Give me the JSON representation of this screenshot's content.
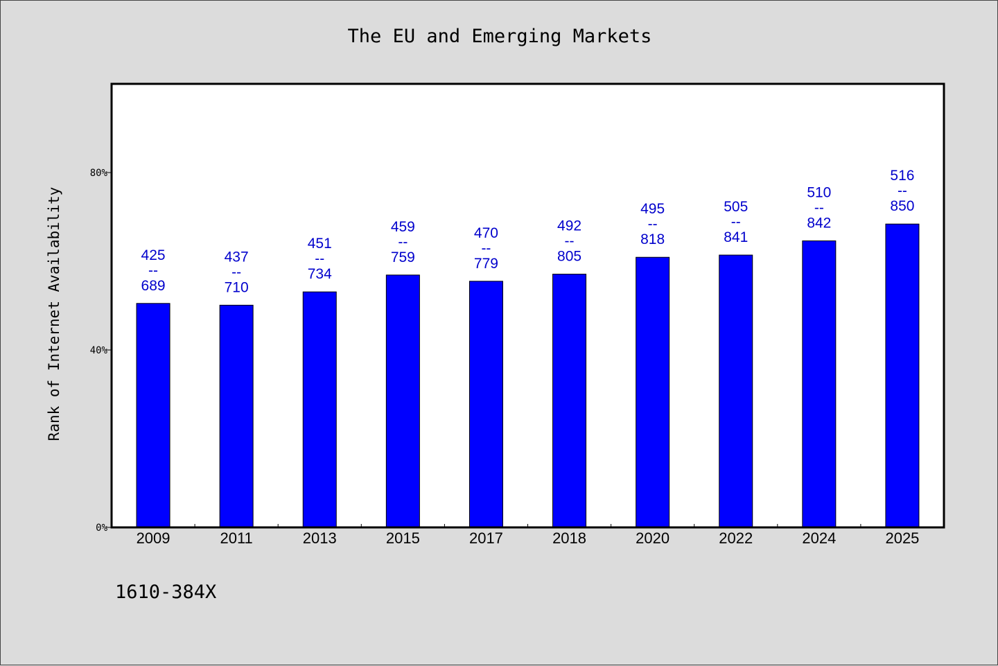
{
  "chart_data": {
    "type": "bar",
    "title": "The EU and Emerging Markets",
    "xlabel": "",
    "ylabel": "Rank of Internet Availability",
    "ylim": [
      0,
      100
    ],
    "yticks": [
      0,
      40,
      80
    ],
    "ytick_labels": [
      "0%",
      "40%",
      "80%"
    ],
    "grid": false,
    "categories": [
      "2009",
      "2011",
      "2013",
      "2015",
      "2017",
      "2018",
      "2020",
      "2022",
      "2024",
      "2025"
    ],
    "values": [
      50.5,
      50.1,
      53.1,
      56.9,
      55.5,
      57.1,
      60.9,
      61.4,
      64.6,
      68.4
    ],
    "data_labels": [
      {
        "top": "425",
        "sep": "--",
        "bottom": "689"
      },
      {
        "top": "437",
        "sep": "--",
        "bottom": "710"
      },
      {
        "top": "451",
        "sep": "--",
        "bottom": "734"
      },
      {
        "top": "459",
        "sep": "--",
        "bottom": "759"
      },
      {
        "top": "470",
        "sep": "--",
        "bottom": "779"
      },
      {
        "top": "492",
        "sep": "--",
        "bottom": "805"
      },
      {
        "top": "495",
        "sep": "--",
        "bottom": "818"
      },
      {
        "top": "505",
        "sep": "--",
        "bottom": "841"
      },
      {
        "top": "510",
        "sep": "--",
        "bottom": "842"
      },
      {
        "top": "516",
        "sep": "--",
        "bottom": "850"
      }
    ],
    "bar_color": "#0000ff",
    "label_color": "#0000cc",
    "footer": "1610-384X"
  }
}
